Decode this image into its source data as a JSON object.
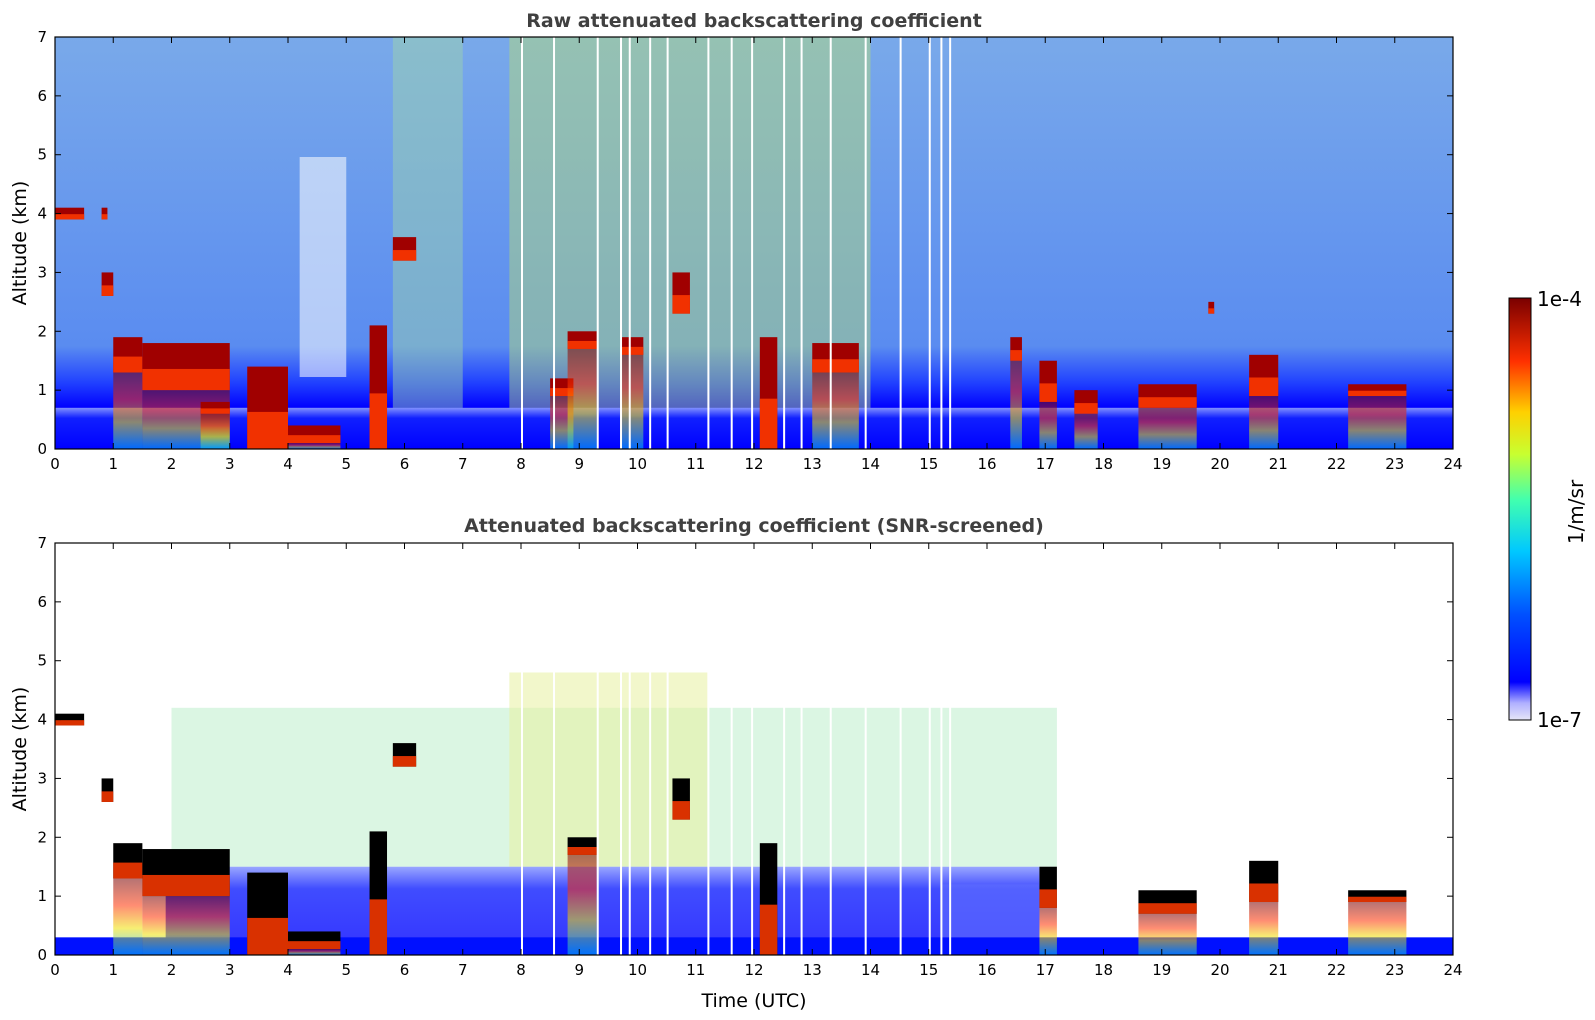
{
  "chart_data": [
    {
      "type": "heatmap",
      "title": "Raw attenuated backscattering coefficient",
      "xlabel": "",
      "ylabel": "Altitude (km)",
      "xlim": [
        0,
        24
      ],
      "ylim": [
        0,
        7
      ],
      "x_ticks": [
        "0",
        "1",
        "2",
        "3",
        "4",
        "5",
        "6",
        "7",
        "8",
        "9",
        "10",
        "11",
        "12",
        "13",
        "14",
        "15",
        "16",
        "17",
        "18",
        "19",
        "20",
        "21",
        "22",
        "23",
        "24"
      ],
      "y_ticks": [
        "0",
        "1",
        "2",
        "3",
        "4",
        "5",
        "6",
        "7"
      ],
      "cloud_layers": [
        {
          "start": 0.0,
          "end": 0.5,
          "base": 3.9,
          "top": 4.1
        },
        {
          "start": 0.8,
          "end": 0.9,
          "base": 3.9,
          "top": 4.1
        },
        {
          "start": 0.8,
          "end": 1.0,
          "base": 2.6,
          "top": 3.0
        },
        {
          "start": 1.0,
          "end": 1.5,
          "base": 1.3,
          "top": 1.9
        },
        {
          "start": 1.5,
          "end": 3.0,
          "base": 1.0,
          "top": 1.8
        },
        {
          "start": 2.5,
          "end": 3.0,
          "base": 0.6,
          "top": 0.8
        },
        {
          "start": 3.3,
          "end": 4.0,
          "base": 0.0,
          "top": 1.4
        },
        {
          "start": 4.0,
          "end": 4.9,
          "base": 0.1,
          "top": 0.4
        },
        {
          "start": 5.4,
          "end": 5.7,
          "base": 0.0,
          "top": 2.1
        },
        {
          "start": 5.8,
          "end": 6.2,
          "base": 3.2,
          "top": 3.6
        },
        {
          "start": 8.5,
          "end": 8.9,
          "base": 0.9,
          "top": 1.2
        },
        {
          "start": 8.8,
          "end": 9.3,
          "base": 1.7,
          "top": 2.0
        },
        {
          "start": 9.7,
          "end": 10.1,
          "base": 1.6,
          "top": 1.9
        },
        {
          "start": 10.6,
          "end": 10.9,
          "base": 2.3,
          "top": 3.0
        },
        {
          "start": 12.1,
          "end": 12.4,
          "base": 0.0,
          "top": 1.9
        },
        {
          "start": 13.0,
          "end": 13.8,
          "base": 1.3,
          "top": 1.8
        },
        {
          "start": 16.4,
          "end": 16.6,
          "base": 1.5,
          "top": 1.9
        },
        {
          "start": 16.9,
          "end": 17.2,
          "base": 0.8,
          "top": 1.5
        },
        {
          "start": 17.5,
          "end": 17.9,
          "base": 0.6,
          "top": 1.0
        },
        {
          "start": 18.6,
          "end": 19.6,
          "base": 0.7,
          "top": 1.1
        },
        {
          "start": 19.8,
          "end": 19.9,
          "base": 2.3,
          "top": 2.5
        },
        {
          "start": 20.5,
          "end": 21.0,
          "base": 0.9,
          "top": 1.6
        },
        {
          "start": 22.2,
          "end": 23.2,
          "base": 0.9,
          "top": 1.1
        }
      ]
    },
    {
      "type": "heatmap",
      "title": "Attenuated backscattering coefficient (SNR-screened)",
      "xlabel": "Time (UTC)",
      "ylabel": "Altitude (km)",
      "xlim": [
        0,
        24
      ],
      "ylim": [
        0,
        7
      ],
      "x_ticks": [
        "0",
        "1",
        "2",
        "3",
        "4",
        "5",
        "6",
        "7",
        "8",
        "9",
        "10",
        "11",
        "12",
        "13",
        "14",
        "15",
        "16",
        "17",
        "18",
        "19",
        "20",
        "21",
        "22",
        "23",
        "24"
      ],
      "y_ticks": [
        "0",
        "1",
        "2",
        "3",
        "4",
        "5",
        "6",
        "7"
      ],
      "screened_cloud_layers": [
        {
          "start": 0.0,
          "end": 0.5,
          "base": 3.9,
          "top": 4.1
        },
        {
          "start": 0.8,
          "end": 1.0,
          "base": 2.6,
          "top": 3.0
        },
        {
          "start": 1.0,
          "end": 1.5,
          "base": 1.3,
          "top": 1.9
        },
        {
          "start": 1.5,
          "end": 3.0,
          "base": 1.0,
          "top": 1.8
        },
        {
          "start": 3.3,
          "end": 4.0,
          "base": 0.0,
          "top": 1.4
        },
        {
          "start": 4.0,
          "end": 4.9,
          "base": 0.1,
          "top": 0.4
        },
        {
          "start": 5.4,
          "end": 5.7,
          "base": 0.0,
          "top": 2.1
        },
        {
          "start": 5.8,
          "end": 6.2,
          "base": 3.2,
          "top": 3.6
        },
        {
          "start": 8.8,
          "end": 9.3,
          "base": 1.7,
          "top": 2.0
        },
        {
          "start": 10.6,
          "end": 10.9,
          "base": 2.3,
          "top": 3.0
        },
        {
          "start": 12.1,
          "end": 12.4,
          "base": 0.0,
          "top": 1.9
        },
        {
          "start": 16.9,
          "end": 17.2,
          "base": 0.8,
          "top": 1.5
        },
        {
          "start": 18.6,
          "end": 19.6,
          "base": 0.7,
          "top": 1.1
        },
        {
          "start": 20.5,
          "end": 21.0,
          "base": 0.9,
          "top": 1.6
        },
        {
          "start": 22.2,
          "end": 23.2,
          "base": 0.9,
          "top": 1.1
        }
      ]
    }
  ],
  "colorbar": {
    "label": "1/m/sr",
    "max_label": "1e-4",
    "min_label": "1e-7",
    "colors": [
      "#e6e6f8",
      "#0000ff",
      "#0080ff",
      "#00e0ff",
      "#60ff90",
      "#e0ff20",
      "#ffa000",
      "#ff2000",
      "#800000"
    ]
  }
}
